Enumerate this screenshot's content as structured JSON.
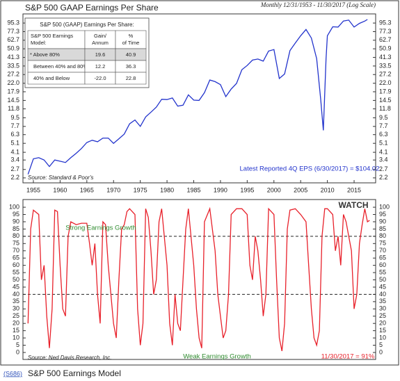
{
  "chart_data": [
    {
      "type": "line",
      "title": "S&P 500 GAAP Earnings Per Share",
      "subtitle": "Monthly 12/31/1953 - 11/30/2017 (Log Scale)",
      "log_scale": true,
      "color": "#2233cc",
      "x": [
        1954,
        1955,
        1956,
        1957,
        1958,
        1959,
        1960,
        1961,
        1962,
        1963,
        1964,
        1965,
        1966,
        1967,
        1968,
        1969,
        1970,
        1971,
        1972,
        1973,
        1974,
        1975,
        1976,
        1977,
        1978,
        1979,
        1980,
        1981,
        1982,
        1983,
        1984,
        1985,
        1986,
        1987,
        1988,
        1989,
        1990,
        1991,
        1992,
        1993,
        1994,
        1995,
        1996,
        1997,
        1998,
        1999,
        2000,
        2001,
        2002,
        2003,
        2004,
        2005,
        2006,
        2007,
        2008,
        2008.75,
        2009.25,
        2009.75,
        2010,
        2011,
        2012,
        2013,
        2014,
        2015,
        2016,
        2017,
        2017.5
      ],
      "values": [
        2.4,
        3.5,
        3.6,
        3.4,
        2.9,
        3.4,
        3.3,
        3.2,
        3.6,
        4.0,
        4.5,
        5.2,
        5.5,
        5.3,
        5.8,
        5.8,
        5.1,
        5.7,
        6.4,
        8.2,
        9.0,
        7.7,
        9.7,
        10.9,
        12.3,
        14.9,
        14.8,
        15.4,
        12.6,
        12.9,
        16.6,
        14.6,
        14.5,
        17.5,
        23.8,
        22.9,
        21.3,
        15.9,
        19.1,
        21.9,
        30.6,
        33.9,
        38.7,
        39.7,
        37.7,
        48.2,
        50.0,
        24.7,
        27.6,
        48.7,
        58.6,
        69.9,
        81.5,
        66.2,
        40.0,
        14.9,
        7.0,
        40.0,
        70.0,
        87.0,
        86.5,
        100.2,
        102.3,
        86.5,
        94.6,
        100.0,
        104.02
      ],
      "xlim": [
        1953.05,
        2019.03
      ],
      "xticks": [
        1955,
        1960,
        1965,
        1970,
        1975,
        1980,
        1985,
        1990,
        1995,
        2000,
        2005,
        2010,
        2015
      ],
      "ylim": [
        1.95,
        119
      ],
      "yticks": [
        {
          "value": 95.3,
          "label": "95.3"
        },
        {
          "value": 77.3,
          "label": "77.3"
        },
        {
          "value": 62.7,
          "label": "62.7"
        },
        {
          "value": 50.9,
          "label": "50.9"
        },
        {
          "value": 41.3,
          "label": "41.3"
        },
        {
          "value": 33.5,
          "label": "33.5"
        },
        {
          "value": 27.2,
          "label": "27.2"
        },
        {
          "value": 22,
          "label": "22.0"
        },
        {
          "value": 17.9,
          "label": "17.9"
        },
        {
          "value": 14.5,
          "label": "14.5"
        },
        {
          "value": 11.8,
          "label": "11.8"
        },
        {
          "value": 9.5,
          "label": "9.5"
        },
        {
          "value": 7.7,
          "label": "7.7"
        },
        {
          "value": 6.3,
          "label": "6.3"
        },
        {
          "value": 5.1,
          "label": "5.1"
        },
        {
          "value": 4.1,
          "label": "4.1"
        },
        {
          "value": 3.4,
          "label": "3.4"
        },
        {
          "value": 2.7,
          "label": "2.7"
        },
        {
          "value": 2.2,
          "label": "2.2"
        }
      ],
      "annotations": [
        "Latest Reported 4Q EPS (6/30/2017) = $104.02",
        "Source: Standard & Poor's"
      ],
      "table": {
        "title": "S&P 500 (GAAP) Earnings Per Share:",
        "headers": [
          [
            "S&P 500 Earnings",
            "Model:"
          ],
          [
            "Gain/",
            "Annum"
          ],
          [
            "%",
            "of Time"
          ]
        ],
        "rows": [
          [
            "* Above 80%",
            "19.6",
            "40.9"
          ],
          [
            "Between 40% and 80%",
            "12.2",
            "36.3"
          ],
          [
            "40% and Below",
            "-22.0",
            "22.8"
          ]
        ]
      }
    },
    {
      "type": "line",
      "color": "#e8202a",
      "x": [
        1954,
        1954.5,
        1955,
        1956,
        1956.5,
        1957,
        1957.5,
        1958,
        1958.5,
        1959,
        1959.5,
        1960,
        1960.5,
        1961,
        1961.5,
        1962,
        1963,
        1964,
        1965,
        1965.5,
        1966,
        1966.5,
        1967,
        1967.5,
        1968,
        1968.5,
        1969,
        1970,
        1970.5,
        1971,
        1971.5,
        1972,
        1972.5,
        1973,
        1974,
        1974.5,
        1975,
        1975.5,
        1976,
        1976.5,
        1977,
        1977.5,
        1978,
        1978.5,
        1979,
        1980,
        1980.5,
        1981,
        1981.5,
        1982,
        1982.5,
        1983,
        1983.5,
        1984,
        1985,
        1985.5,
        1986,
        1986.5,
        1987,
        1988,
        1989,
        1989.5,
        1990,
        1990.5,
        1991,
        1991.5,
        1992,
        1993,
        1994,
        1995,
        1995.5,
        1996,
        1996.5,
        1997,
        1997.5,
        1998,
        1998.5,
        1999,
        2000,
        2000.5,
        2001,
        2001.5,
        2002,
        2002.5,
        2003,
        2004,
        2005,
        2006,
        2006.5,
        2007,
        2007.5,
        2008,
        2008.5,
        2009,
        2009.5,
        2010,
        2011,
        2011.5,
        2012,
        2012.5,
        2013,
        2013.5,
        2014,
        2014.5,
        2015,
        2015.5,
        2016,
        2016.5,
        2017,
        2017.5,
        2017.9
      ],
      "values": [
        20,
        85,
        98,
        95,
        50,
        60,
        25,
        3,
        30,
        98,
        97,
        60,
        30,
        25,
        80,
        90,
        88,
        89,
        89,
        75,
        60,
        75,
        40,
        20,
        90,
        88,
        60,
        20,
        10,
        50,
        85,
        88,
        97,
        99,
        95,
        30,
        5,
        20,
        99,
        93,
        70,
        40,
        50,
        90,
        99,
        60,
        20,
        5,
        40,
        20,
        15,
        50,
        85,
        99,
        60,
        30,
        10,
        3,
        90,
        99,
        70,
        40,
        25,
        10,
        15,
        40,
        95,
        99,
        99,
        95,
        60,
        50,
        80,
        70,
        50,
        25,
        40,
        99,
        95,
        50,
        10,
        1,
        20,
        85,
        98,
        99,
        95,
        90,
        60,
        30,
        10,
        5,
        15,
        80,
        99,
        99,
        95,
        70,
        80,
        60,
        95,
        90,
        80,
        70,
        30,
        40,
        75,
        88,
        99,
        90,
        91
      ],
      "xlim": [
        1953.05,
        2019.03
      ],
      "ylim": [
        -4.8,
        105.3
      ],
      "yticks": [
        0,
        5,
        10,
        15,
        20,
        25,
        30,
        35,
        40,
        45,
        50,
        55,
        60,
        65,
        70,
        75,
        80,
        85,
        90,
        95,
        100
      ],
      "reference_lines": [
        80,
        40
      ],
      "annotations": [
        "Strong Earnings Growth",
        "Weak Earnings Growth",
        "WATCH",
        "Source: Ned Davis Research, Inc.",
        "11/30/2017 = 91%"
      ]
    }
  ],
  "footer": {
    "code": "(S686)",
    "title": "S&P 500 Earnings Model"
  }
}
